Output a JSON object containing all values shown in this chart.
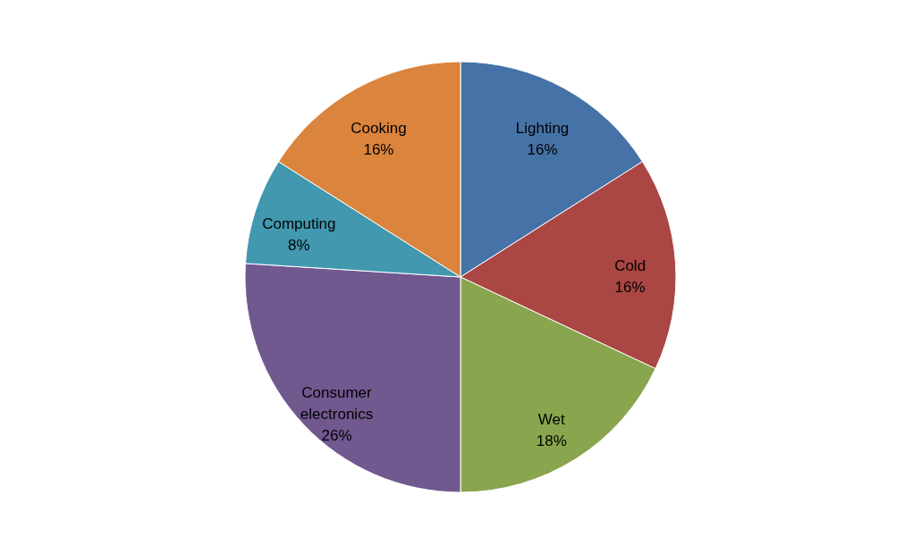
{
  "chart_data": {
    "type": "pie",
    "categories": [
      "Lighting",
      "Cold",
      "Wet",
      "Consumer electronics",
      "Computing",
      "Cooking"
    ],
    "values": [
      16,
      16,
      18,
      26,
      8,
      16
    ],
    "colors": [
      "#4572a7",
      "#aa4643",
      "#89a54e",
      "#71588f",
      "#4198af",
      "#db843d"
    ],
    "value_labels": [
      "16%",
      "16%",
      "18%",
      "26%",
      "8%",
      "16%"
    ],
    "legend": false
  }
}
